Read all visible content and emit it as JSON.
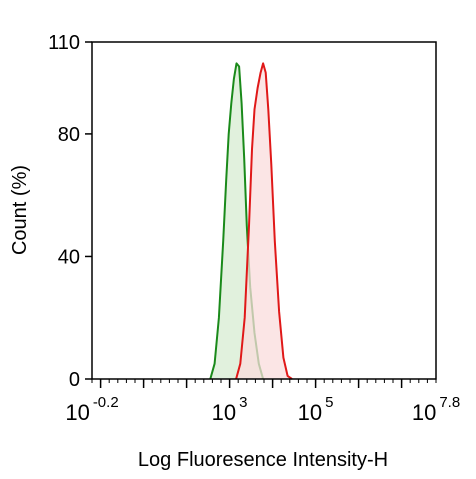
{
  "chart_data": {
    "type": "area",
    "title": "",
    "xlabel": "Log Fluoresence Intensity-H",
    "ylabel": "Count  (%)",
    "x_scale": "log10",
    "xlim": [
      -0.2,
      7.8
    ],
    "ylim": [
      0,
      110
    ],
    "yticks": [
      {
        "value": 0,
        "label": "0"
      },
      {
        "value": 40,
        "label": "40"
      },
      {
        "value": 80,
        "label": "80"
      },
      {
        "value": 110,
        "label": "110"
      }
    ],
    "xticks": [
      {
        "value": -0.2,
        "base": "10",
        "exp": "-0.2"
      },
      {
        "value": 3,
        "base": "10",
        "exp": "3"
      },
      {
        "value": 5,
        "base": "10",
        "exp": "5"
      },
      {
        "value": 7.8,
        "base": "10",
        "exp": "7.8"
      }
    ],
    "grid": false,
    "legend": "none",
    "series": [
      {
        "color": "#1a8a1a",
        "fill": "#d7ecd2",
        "points": [
          [
            2.55,
            0
          ],
          [
            2.65,
            5
          ],
          [
            2.75,
            20
          ],
          [
            2.85,
            45
          ],
          [
            2.92,
            65
          ],
          [
            2.98,
            80
          ],
          [
            3.04,
            90
          ],
          [
            3.1,
            98
          ],
          [
            3.16,
            103
          ],
          [
            3.22,
            102
          ],
          [
            3.28,
            90
          ],
          [
            3.34,
            72
          ],
          [
            3.4,
            50
          ],
          [
            3.48,
            30
          ],
          [
            3.58,
            15
          ],
          [
            3.68,
            5
          ],
          [
            3.78,
            0
          ]
        ]
      },
      {
        "color": "#e01818",
        "fill": "#f9dcdc",
        "points": [
          [
            3.15,
            0
          ],
          [
            3.25,
            5
          ],
          [
            3.35,
            20
          ],
          [
            3.45,
            50
          ],
          [
            3.52,
            75
          ],
          [
            3.58,
            88
          ],
          [
            3.65,
            95
          ],
          [
            3.72,
            100
          ],
          [
            3.78,
            103
          ],
          [
            3.84,
            100
          ],
          [
            3.9,
            88
          ],
          [
            3.97,
            70
          ],
          [
            4.05,
            45
          ],
          [
            4.15,
            22
          ],
          [
            4.25,
            7
          ],
          [
            4.35,
            1
          ],
          [
            4.45,
            0
          ]
        ]
      }
    ]
  }
}
